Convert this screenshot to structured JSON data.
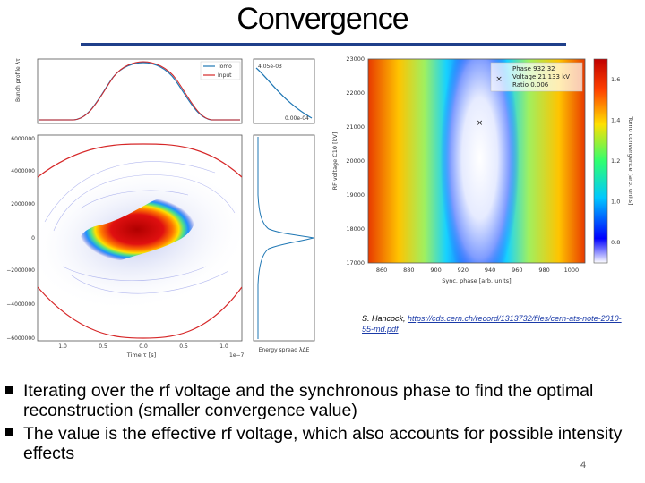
{
  "slide": {
    "title": "Convergence",
    "credit_author": "S. Hancock, ",
    "credit_link": "https://cds.cern.ch/record/1313732/files/cern-ats-note-2010-55-md.pdf",
    "bullets": [
      "Iterating over the rf voltage and the synchronous phase to find the optimal reconstruction (smaller convergence value)",
      "The value is the effective rf voltage, which also accounts for possible intensity effects"
    ],
    "page_number": "4"
  },
  "left_figure": {
    "profile_ylabel": "Bunch profile λτ",
    "legend": [
      "Tomo",
      "Input"
    ],
    "legend_colors": [
      "#1f77b4",
      "#d62728"
    ],
    "side_top": "4.05e-03",
    "side_bottom": "0.00e-04",
    "y_ticks": [
      "6000000",
      "4000000",
      "2000000",
      "0",
      "−2000000",
      "−4000000",
      "−6000000"
    ],
    "x_ticks": [
      "1.0",
      "0.5",
      "0.0",
      "0.5",
      "1.0"
    ],
    "x_label": "Time τ [s]",
    "x_exponent": "1e−7",
    "side_xlabel": "Energy spread λΔE"
  },
  "chart_data": {
    "type": "heatmap",
    "xlabel": "Sync. phase [arb. units]",
    "ylabel": "RF voltage C10 [kV]",
    "x_ticks": [
      "860",
      "880",
      "900",
      "920",
      "940",
      "960",
      "980",
      "1000"
    ],
    "y_ticks": [
      "23000",
      "22000",
      "21000",
      "20000",
      "19000",
      "18000",
      "17000"
    ],
    "xlim": [
      850,
      1010
    ],
    "ylim": [
      17000,
      23000
    ],
    "minimum": {
      "x": 932.32,
      "y": 21133
    },
    "annotation": [
      "Phase 932.32",
      "Voltage 21 133 kV",
      "Ratio 0.006"
    ],
    "colorbar_label": "Tomo convergence [arb. units]",
    "colorbar_ticks": [
      "1.6",
      "1.4",
      "1.2",
      "1.0",
      "0.8"
    ],
    "colorbar_range": [
      0.7,
      1.7
    ]
  }
}
